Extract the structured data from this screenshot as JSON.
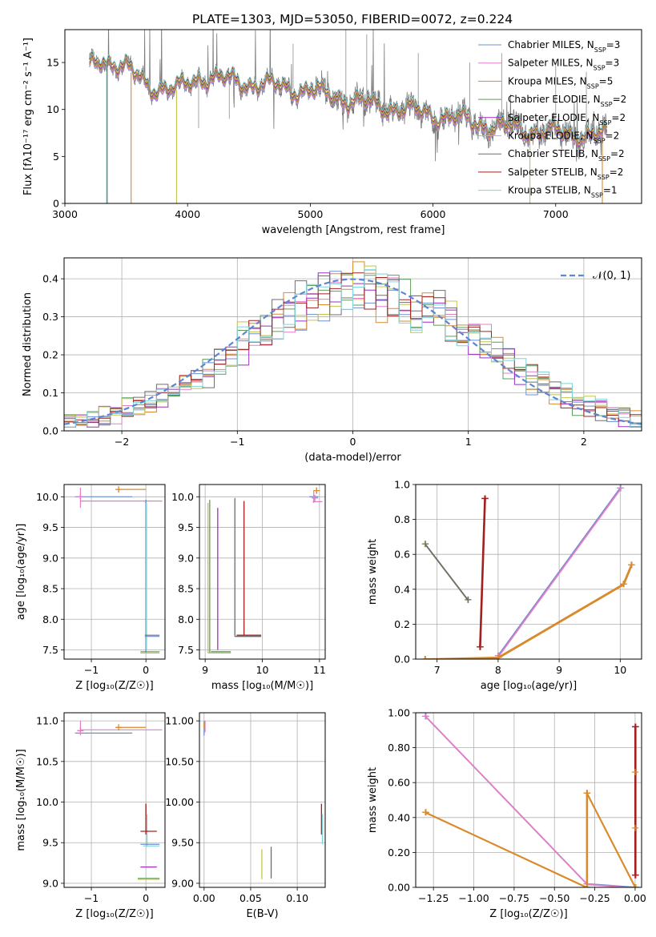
{
  "title": "PLATE=1303, MJD=53050, FIBERID=0072, z=0.224",
  "series_colors": [
    "#6d8fd0",
    "#e47dc8",
    "#d98a2c",
    "#5c9e5c",
    "#9b2fc0",
    "#c4c44a",
    "#6e6e6e",
    "#a32020",
    "#7fd4d8"
  ],
  "legend_labels": [
    "Chabrier MILES, N",
    "Salpeter MILES, N",
    "Kroupa MILES, N",
    "Chabrier ELODIE, N",
    "Salpeter ELODIE, N",
    "Kroupa ELODIE, N",
    "Chabrier STELIB, N",
    "Salpeter STELIB, N",
    "Kroupa STELIB, N"
  ],
  "legend_sub": "SSP",
  "legend_values": [
    "=3",
    "=3",
    "=5",
    "=2",
    "=2",
    "=2",
    "=2",
    "=2",
    "=1"
  ],
  "chart_data": [
    {
      "type": "line",
      "xlabel": "wavelength [Angstrom, rest frame]",
      "ylabel": "Flux [fλ10⁻¹⁷ erg cm⁻² s⁻¹ A⁻¹]",
      "xlim": [
        3000,
        7700
      ],
      "ylim": [
        0,
        18.5
      ],
      "xticks": [
        3000,
        4000,
        5000,
        6000,
        7000
      ],
      "yticks": [
        0,
        5,
        10,
        15
      ],
      "data_profile": {
        "x": [
          3200,
          3300,
          3500,
          3700,
          3900,
          4100,
          4500,
          5000,
          5500,
          6000,
          6500,
          7000,
          7400
        ],
        "y": [
          14.5,
          15.5,
          14.3,
          12.5,
          12.0,
          13.5,
          12.8,
          12.0,
          10.5,
          9.5,
          8.2,
          7.5,
          7.2
        ]
      },
      "legend": "top-right",
      "grid": false
    },
    {
      "type": "histogram",
      "xlabel": "(data-model)/error",
      "ylabel": "Normed distribution",
      "xlim": [
        -2.5,
        2.5
      ],
      "ylim": [
        0,
        0.455
      ],
      "xticks": [
        -2,
        -1,
        0,
        1,
        2
      ],
      "yticks": [
        0.0,
        0.1,
        0.2,
        0.3,
        0.4
      ],
      "reference_label": "𝒩(0, 1)",
      "reference": {
        "mean": 0,
        "sigma": 1
      },
      "legend": "top-right",
      "grid": true
    },
    {
      "type": "errorbar",
      "xlabel": "Z [log₁₀(Z/Z☉)]",
      "ylabel": "age  [log₁₀(age/yr)]",
      "xlim": [
        -1.5,
        0.35
      ],
      "ylim": [
        7.35,
        10.2
      ],
      "xticks": [
        -1,
        0
      ],
      "yticks": [
        7.5,
        8.0,
        8.5,
        9.0,
        9.5,
        10.0
      ],
      "points": [
        {
          "x": -1.25,
          "y": 10.0
        },
        {
          "x": -0.5,
          "y": 10.12
        },
        {
          "x": -1.2,
          "y": 9.93
        },
        {
          "x": 0.0,
          "y": 7.45
        },
        {
          "x": 0.0,
          "y": 7.72
        }
      ],
      "grid": true
    },
    {
      "type": "errorbar",
      "xlabel": "mass [log₁₀(M/M☉)]",
      "ylabel": "",
      "xlim": [
        8.9,
        11.1
      ],
      "ylim": [
        7.35,
        10.2
      ],
      "xticks": [
        9,
        10,
        11
      ],
      "yticks": [
        7.5,
        8.0,
        8.5,
        9.0,
        9.5,
        10.0
      ],
      "grid": true
    },
    {
      "type": "line",
      "xlabel": "age  [log₁₀(age/yr)]",
      "ylabel": "mass weight",
      "xlim": [
        6.65,
        10.35
      ],
      "ylim": [
        0,
        1.0
      ],
      "xticks": [
        7,
        8,
        9,
        10
      ],
      "yticks": [
        0.0,
        0.2,
        0.4,
        0.6,
        0.8,
        1.0
      ],
      "series": [
        {
          "x": [
            6.8,
            7.5
          ],
          "y": [
            0.66,
            0.34
          ]
        },
        {
          "x": [
            7.7,
            7.78
          ],
          "y": [
            0.07,
            0.92
          ]
        },
        {
          "x": [
            8.0,
            10.0
          ],
          "y": [
            0.02,
            0.98
          ]
        },
        {
          "x": [
            6.8,
            8.0,
            10.05,
            10.18
          ],
          "y": [
            0.0,
            0.01,
            0.43,
            0.54
          ]
        }
      ],
      "grid": true
    },
    {
      "type": "errorbar",
      "xlabel": "Z [log₁₀(Z/Z☉)]",
      "ylabel": "mass [log₁₀(M/M☉)]",
      "xlim": [
        -1.5,
        0.35
      ],
      "ylim": [
        8.95,
        11.1
      ],
      "xticks": [
        -1,
        0
      ],
      "yticks": [
        9.0,
        9.5,
        10.0,
        10.5,
        11.0
      ],
      "grid": true
    },
    {
      "type": "errorbar",
      "xlabel": "E(B-V)",
      "ylabel": "",
      "xlim": [
        -0.005,
        0.13
      ],
      "ylim": [
        8.95,
        11.1
      ],
      "xticks": [
        0.0,
        0.05,
        0.1
      ],
      "yticks": [
        9.0,
        9.5,
        10.0,
        10.5,
        11.0
      ],
      "grid": true
    },
    {
      "type": "line",
      "xlabel": "Z [log₁₀(Z/Z☉)]",
      "ylabel": "mass weight",
      "xlim": [
        -1.36,
        0.04
      ],
      "ylim": [
        0,
        1.0
      ],
      "xticks": [
        -1.25,
        -1.0,
        -0.75,
        -0.5,
        -0.25,
        0.0
      ],
      "yticks": [
        0.0,
        0.2,
        0.4,
        0.6,
        0.8,
        1.0
      ],
      "series": [
        {
          "x": [
            -1.3,
            -0.3,
            0.0
          ],
          "y": [
            0.98,
            0.02,
            0.0
          ]
        },
        {
          "x": [
            -1.3,
            -0.3,
            -0.3,
            0.0
          ],
          "y": [
            0.43,
            0.0,
            0.54,
            0.0
          ]
        },
        {
          "x": [
            0.0,
            0.0
          ],
          "y": [
            0.07,
            0.92
          ]
        }
      ],
      "grid": true
    }
  ]
}
